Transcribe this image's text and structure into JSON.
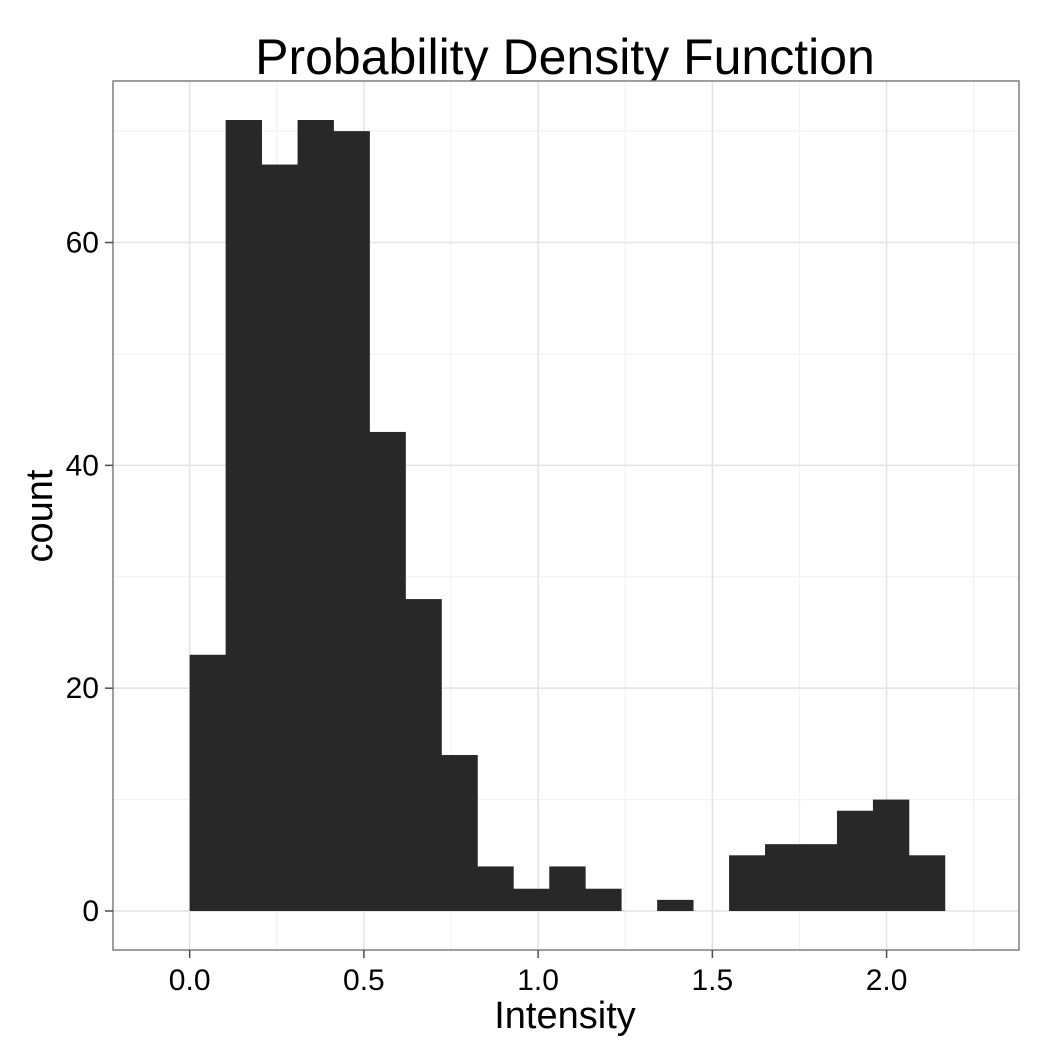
{
  "colors": {
    "bar": "#282828",
    "grid_major": "#e3e3e3",
    "grid_minor": "#f2f2f2",
    "panel_border": "#7f7f7f"
  },
  "chart_data": {
    "type": "bar",
    "subtype": "histogram",
    "title": "Probability Density Function",
    "xlabel": "Intensity",
    "ylabel": "count",
    "xlim": [
      -0.22,
      2.38
    ],
    "ylim": [
      -3.5,
      74.5
    ],
    "grid": true,
    "x_ticks": [
      0.0,
      0.5,
      1.0,
      1.5,
      2.0
    ],
    "x_tick_labels": [
      "0.0",
      "0.5",
      "1.0",
      "1.5",
      "2.0"
    ],
    "y_ticks": [
      0,
      20,
      40,
      60
    ],
    "y_tick_labels": [
      "0",
      "20",
      "40",
      "60"
    ],
    "bin_start": 0.0,
    "bin_width": 0.1032,
    "values": [
      23,
      71,
      67,
      71,
      70,
      43,
      28,
      14,
      4,
      2,
      4,
      2,
      0,
      1,
      0,
      5,
      6,
      6,
      9,
      10,
      5
    ]
  }
}
